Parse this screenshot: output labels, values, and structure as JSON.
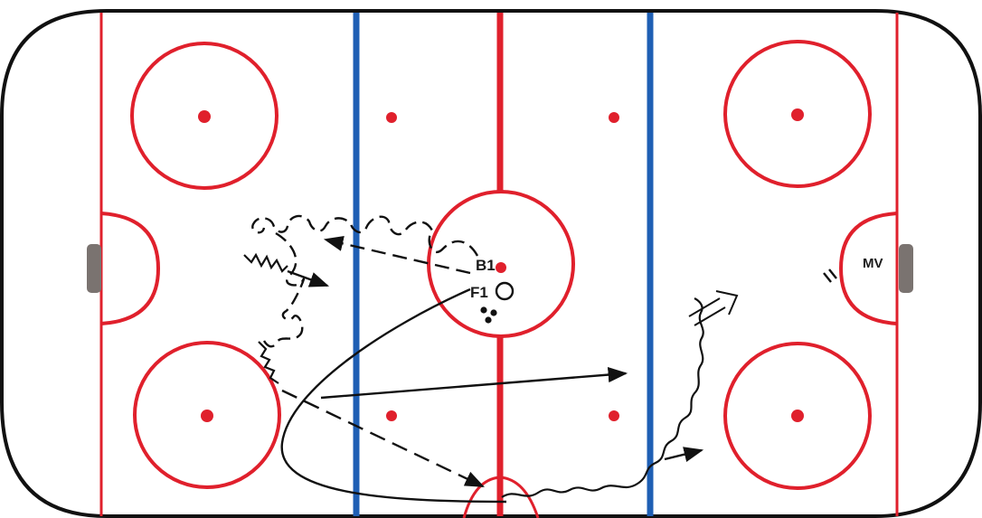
{
  "diagram": {
    "type": "hockey-drill",
    "colors": {
      "board": "#111111",
      "red_line": "#e0202c",
      "blue_line": "#1f5fb4",
      "goal": "#7a7370",
      "path": "#111111"
    },
    "labels": {
      "b1": "B1",
      "f1": "F1",
      "mv": "MV"
    },
    "players": [
      {
        "name": "B1",
        "marker": "none"
      },
      {
        "name": "F1",
        "marker": "circle"
      },
      {
        "name": "MV",
        "marker": "none"
      }
    ],
    "pucks": 3,
    "path_types": [
      "skate",
      "skate-with-puck",
      "pass",
      "backward-skate",
      "shot"
    ]
  }
}
